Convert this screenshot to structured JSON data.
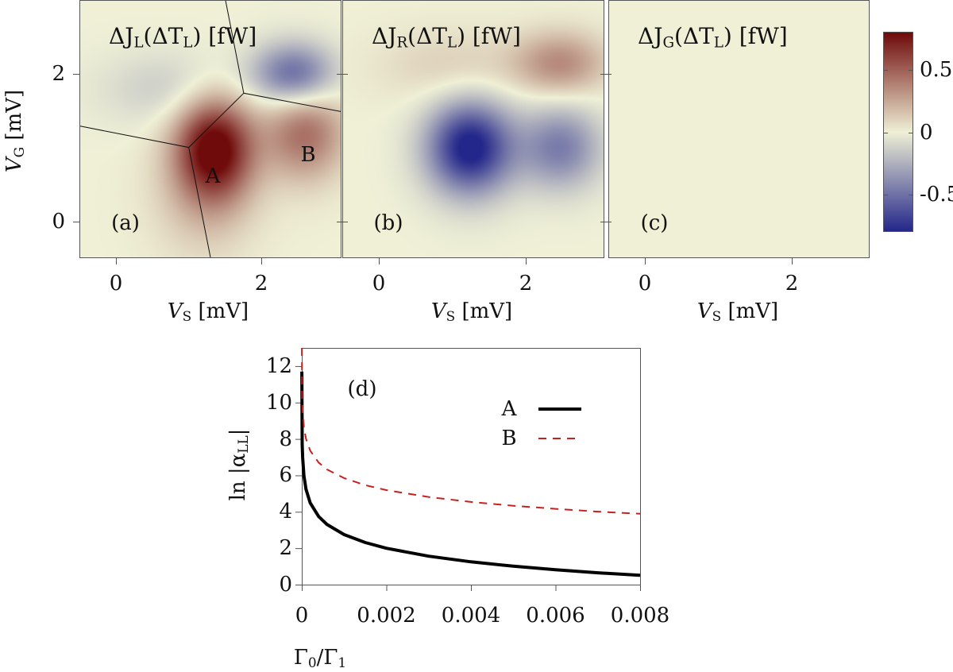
{
  "chart_data": [
    {
      "type": "heatmap",
      "panel": "(a)",
      "title": {
        "pre": "ΔJ",
        "sub": "L",
        "mid": "(ΔT",
        "sub2": "L",
        "post": ") [fW]"
      },
      "xlabel": {
        "var": "V",
        "sub": "S",
        "unit": " [mV]"
      },
      "ylabel": {
        "var": "V",
        "sub": "G",
        "unit": " [mV]"
      },
      "xticks": [
        "0",
        "2"
      ],
      "yticks": [
        "0",
        "2"
      ],
      "xlim": [
        -0.5,
        3.1
      ],
      "ylim": [
        -0.5,
        3.0
      ],
      "annotations": [
        {
          "text": "A",
          "x": 1.33,
          "y": 0.6
        },
        {
          "text": "B",
          "x": 2.65,
          "y": 0.9
        }
      ],
      "features": [
        {
          "x": 1.35,
          "y": 1.0,
          "sx": 0.38,
          "sy": 0.5,
          "value": 0.85
        },
        {
          "x": 2.6,
          "y": 1.2,
          "sx": 0.4,
          "sy": 0.45,
          "value": 0.45
        },
        {
          "x": 2.45,
          "y": 2.0,
          "sx": 0.4,
          "sy": 0.3,
          "value": -0.55
        },
        {
          "x": 0.8,
          "y": 1.8,
          "sx": 0.7,
          "sy": 0.35,
          "value": -0.15
        },
        {
          "x": 1.2,
          "y": 0.3,
          "sx": 0.5,
          "sy": 0.6,
          "value": 0.15
        }
      ],
      "lines": [
        [
          [
            -0.5,
            1.29
          ],
          [
            1.0,
            1.0
          ],
          [
            1.3,
            -0.5
          ]
        ],
        [
          [
            1.0,
            1.0
          ],
          [
            1.76,
            1.74
          ]
        ],
        [
          [
            1.51,
            3.0
          ],
          [
            1.76,
            1.74
          ],
          [
            3.1,
            1.49
          ]
        ]
      ]
    },
    {
      "type": "heatmap",
      "panel": "(b)",
      "title": {
        "pre": "ΔJ",
        "sub": "R",
        "mid": "(ΔT",
        "sub2": "L",
        "post": ") [fW]"
      },
      "xlabel": {
        "var": "V",
        "sub": "S",
        "unit": " [mV]"
      },
      "xticks": [
        "0",
        "2"
      ],
      "xlim": [
        -0.5,
        3.1
      ],
      "ylim": [
        -0.5,
        3.0
      ],
      "features": [
        {
          "x": 1.25,
          "y": 1.0,
          "sx": 0.42,
          "sy": 0.45,
          "value": -0.85
        },
        {
          "x": 2.5,
          "y": 1.0,
          "sx": 0.4,
          "sy": 0.4,
          "value": -0.45
        },
        {
          "x": 2.5,
          "y": 2.15,
          "sx": 0.45,
          "sy": 0.3,
          "value": 0.35
        },
        {
          "x": 1.0,
          "y": 2.1,
          "sx": 0.7,
          "sy": 0.35,
          "value": 0.12
        }
      ],
      "lines": []
    },
    {
      "type": "heatmap",
      "panel": "(c)",
      "title": {
        "pre": "ΔJ",
        "sub": "G",
        "mid": "(ΔT",
        "sub2": "L",
        "post": ") [fW]"
      },
      "xlabel": {
        "var": "V",
        "sub": "S",
        "unit": " [mV]"
      },
      "xticks": [
        "0",
        "2"
      ],
      "xlim": [
        -0.5,
        3.1
      ],
      "ylim": [
        -0.5,
        3.0
      ],
      "features": [],
      "lines": []
    },
    {
      "type": "colorbar",
      "range": [
        -0.8,
        0.8
      ],
      "ticks": [
        {
          "label": "0.5",
          "value": 0.5
        },
        {
          "label": "0",
          "value": 0
        },
        {
          "label": "-0.5",
          "value": -0.5
        }
      ],
      "colors": {
        "low": "#23268a",
        "mid": "#eff0d6",
        "high": "#700b0b"
      }
    },
    {
      "type": "line",
      "panel": "(d)",
      "xlabel": {
        "a": "Γ",
        "asub": "0",
        "b": "/Γ",
        "bsub": "1"
      },
      "ylabel": {
        "pre": "ln |α",
        "sub": "LL",
        "post": "|"
      },
      "xlim": [
        0,
        0.008
      ],
      "ylim": [
        0,
        13
      ],
      "xticks": [
        "0",
        "0.002",
        "0.004",
        "0.006",
        "0.008"
      ],
      "xtick_values": [
        0,
        0.002,
        0.004,
        0.006,
        0.008
      ],
      "yticks": [
        "0",
        "2",
        "4",
        "6",
        "8",
        "10",
        "12"
      ],
      "ytick_values": [
        0,
        2,
        4,
        6,
        8,
        10,
        12
      ],
      "legend_position": "top-right",
      "x": [
        1e-06,
        1e-05,
        2e-05,
        5e-05,
        0.0001,
        0.0002,
        0.0004,
        0.0006,
        0.001,
        0.0015,
        0.002,
        0.003,
        0.004,
        0.005,
        0.006,
        0.007,
        0.008
      ],
      "series": [
        {
          "name": "A",
          "color": "#000000",
          "style": "solid",
          "values": [
            11.7,
            7.72,
            6.98,
            5.98,
            5.24,
            4.49,
            3.74,
            3.3,
            2.75,
            2.31,
            2.0,
            1.56,
            1.25,
            1.01,
            0.82,
            0.65,
            0.51
          ]
        },
        {
          "name": "B",
          "color": "#c8201f",
          "style": "dashed",
          "values": [
            13.0,
            10.17,
            9.52,
            8.66,
            8.01,
            7.36,
            6.7,
            6.32,
            5.85,
            5.46,
            5.19,
            4.81,
            4.54,
            4.33,
            4.16,
            4.01,
            3.89
          ]
        }
      ]
    }
  ]
}
